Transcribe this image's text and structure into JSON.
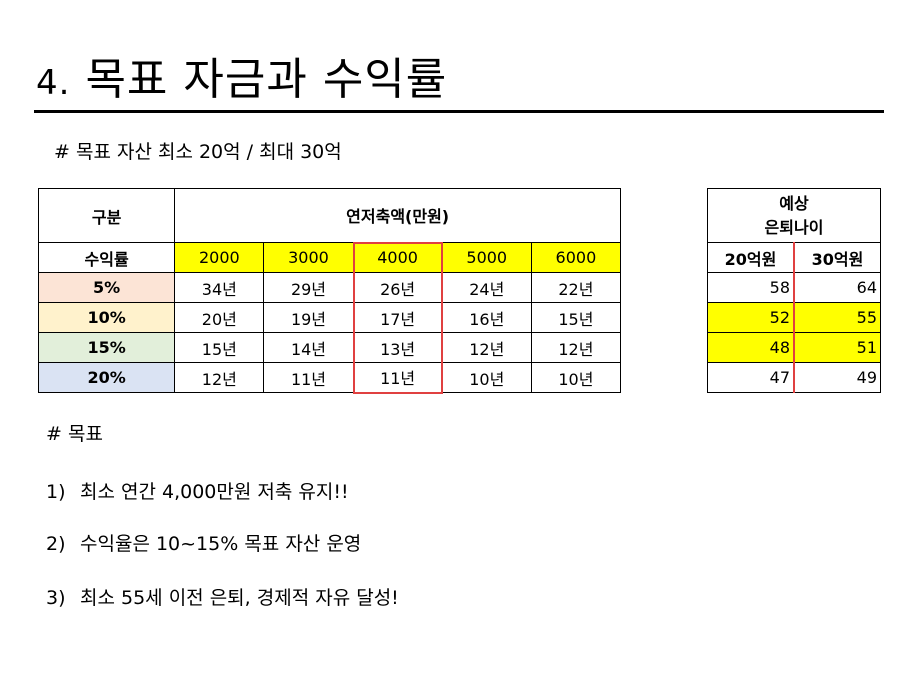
{
  "title": {
    "number": "4.",
    "text": "목표 자금과 수익률"
  },
  "subtitle": "# 목표 자산 최소 20억 / 최대 30억",
  "main_table": {
    "header_category": "구분",
    "header_savings": "연저축액(만원)",
    "row_label": "수익률",
    "amounts": [
      "2000",
      "3000",
      "4000",
      "5000",
      "6000"
    ],
    "rows": [
      {
        "rate": "5%",
        "color": "#fce4d6",
        "years": [
          "34년",
          "29년",
          "26년",
          "24년",
          "22년"
        ]
      },
      {
        "rate": "10%",
        "color": "#fff2cc",
        "years": [
          "20년",
          "19년",
          "17년",
          "16년",
          "15년"
        ]
      },
      {
        "rate": "15%",
        "color": "#e2efda",
        "years": [
          "15년",
          "14년",
          "13년",
          "12년",
          "12년"
        ]
      },
      {
        "rate": "20%",
        "color": "#dae3f3",
        "years": [
          "12년",
          "11년",
          "11년",
          "10년",
          "10년"
        ]
      }
    ]
  },
  "side_table": {
    "header_line1": "예상",
    "header_line2": "은퇴나이",
    "col1": "20억원",
    "col2": "30억원",
    "rows": [
      {
        "a": "58",
        "b": "64",
        "highlight": false
      },
      {
        "a": "52",
        "b": "55",
        "highlight": true
      },
      {
        "a": "48",
        "b": "51",
        "highlight": true
      },
      {
        "a": "47",
        "b": "49",
        "highlight": false
      }
    ]
  },
  "goals": {
    "heading": "# 목표",
    "items": [
      {
        "num": "1)",
        "text": "최소 연간 4,000만원 저축 유지!!"
      },
      {
        "num": "2)",
        "text": "수익율은 10~15% 목표 자산 운영"
      },
      {
        "num": "3)",
        "text": "최소 55세 이전 은퇴, 경제적 자유 달성!"
      }
    ]
  },
  "colors": {
    "highlight": "#ffff00",
    "accent_border": "#e04040"
  }
}
